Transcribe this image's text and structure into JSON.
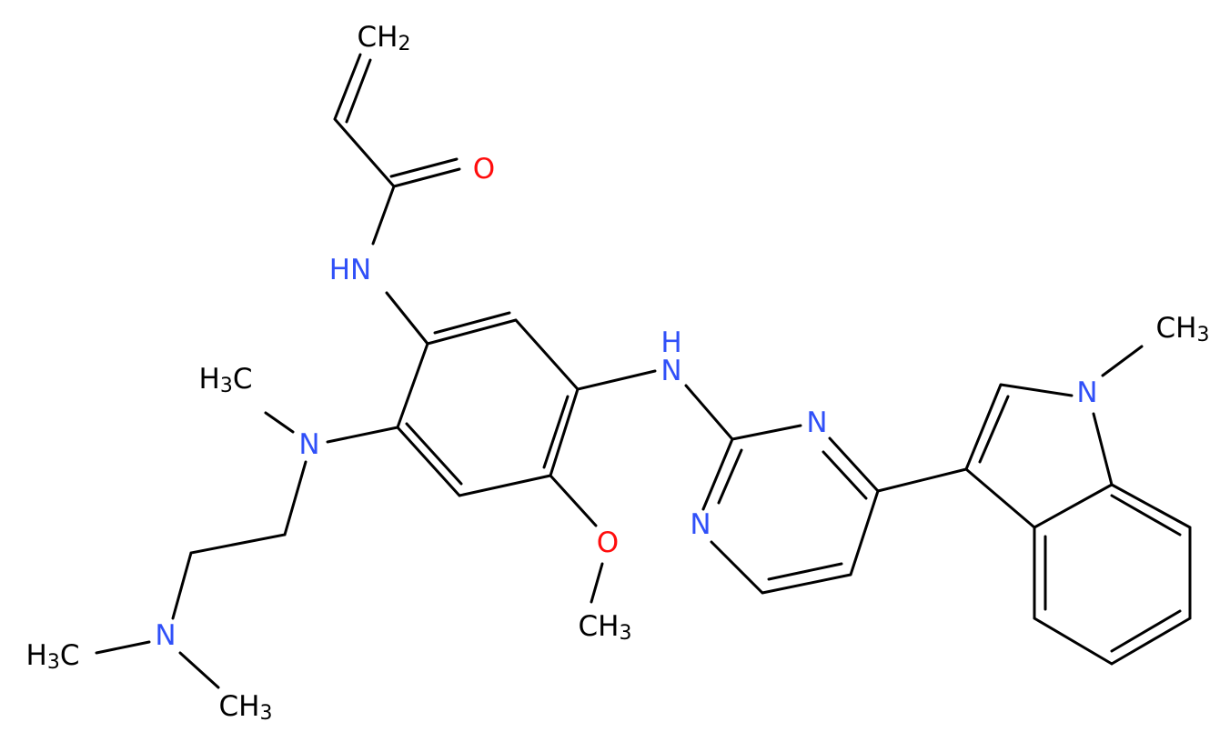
{
  "atoms": [
    {
      "label": "CH2"
    },
    {
      "label": "O"
    },
    {
      "label": "HN"
    },
    {
      "label": "H3C"
    },
    {
      "label": "N"
    },
    {
      "label": "H"
    },
    {
      "label": "N"
    },
    {
      "label": "N"
    },
    {
      "label": "N"
    },
    {
      "label": "O"
    },
    {
      "label": "CH3"
    },
    {
      "label": "N"
    },
    {
      "label": "H3C"
    },
    {
      "label": "CH3"
    },
    {
      "label": "N"
    },
    {
      "label": "CH3"
    }
  ]
}
